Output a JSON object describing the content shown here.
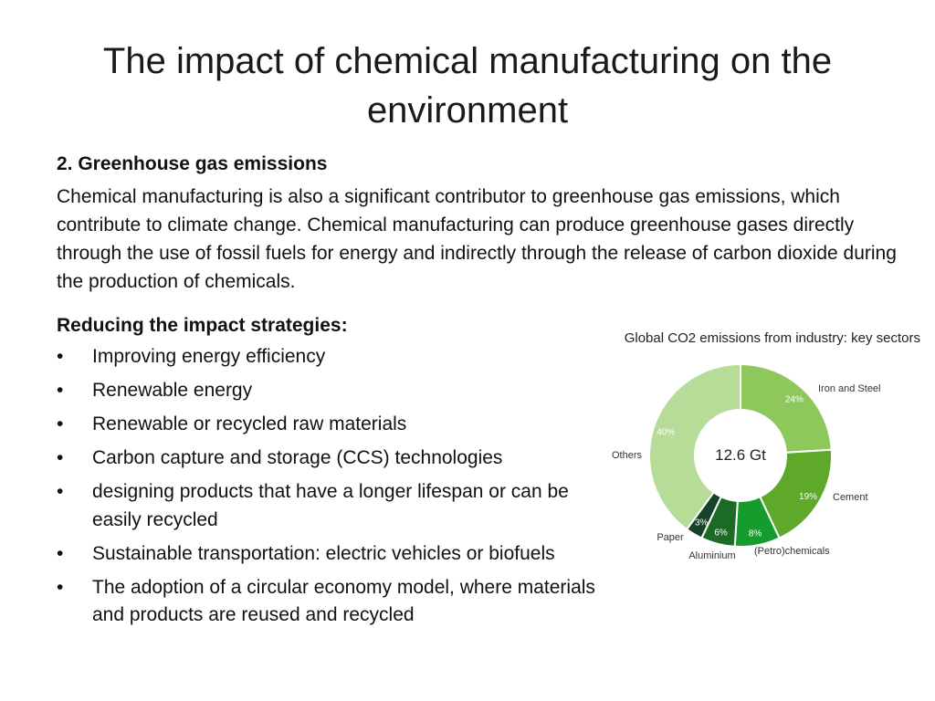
{
  "slide": {
    "title": "The impact of chemical manufacturing on the environment",
    "section_heading": "2. Greenhouse gas emissions",
    "body": "Chemical manufacturing is also a significant contributor to greenhouse gas emissions, which contribute to climate change. Chemical manufacturing can produce greenhouse gases directly through the use of fossil fuels for energy and indirectly through the release of carbon dioxide during the production of chemicals.",
    "strategies_heading": "Reducing the impact strategies:",
    "bullet_symbol": "•",
    "strategies": [
      "Improving  energy efficiency",
      "Renewable energy",
      "Renewable or recycled raw materials",
      "Carbon capture and storage (CCS) technologies",
      "designing products that have a longer lifespan or can be easily recycled",
      "Sustainable transportation: electric vehicles or biofuels",
      "The adoption of a circular economy model, where materials and products are reused and recycled"
    ]
  },
  "chart_data": {
    "type": "pie",
    "title": "Global CO2 emissions from industry: key sectors",
    "center_label": "12.6 Gt",
    "categories": [
      "Iron and Steel",
      "Cement",
      "(Petro)chemicals",
      "Aluminium",
      "Paper",
      "Others"
    ],
    "values": [
      24,
      19,
      8,
      6,
      3,
      40
    ],
    "value_labels": [
      "24%",
      "19%",
      "8%",
      "6%",
      "3%",
      "40%"
    ],
    "colors": [
      "#8ec85c",
      "#5ea82a",
      "#169c2c",
      "#1d6a26",
      "#16422a",
      "#b6dc98"
    ],
    "start_angle_deg": 0,
    "donut": true
  }
}
